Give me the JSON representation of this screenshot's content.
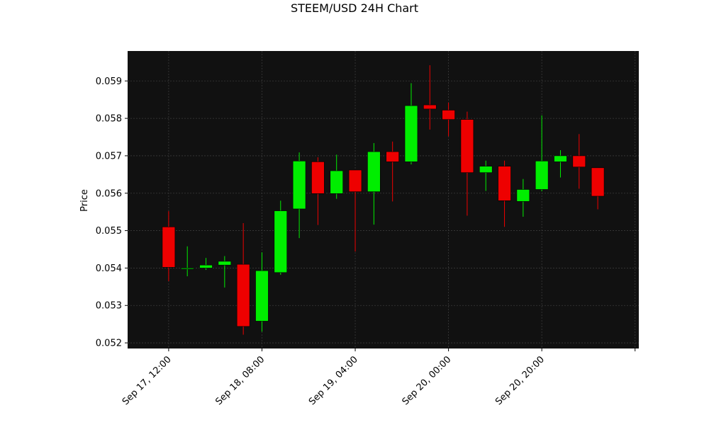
{
  "chart_data": {
    "type": "candlestick",
    "title": "STEEM/USD 24H Chart",
    "ylabel": "Price",
    "xlabel": "",
    "grid": true,
    "legend": "none",
    "colors": {
      "background": "#111111",
      "up": "#00ee00",
      "down": "#ee0000",
      "grid": "#3a3a3a"
    },
    "ylim": [
      0.05185,
      0.0598
    ],
    "yticks": [
      "0.052",
      "0.053",
      "0.054",
      "0.055",
      "0.056",
      "0.057",
      "0.058",
      "0.059"
    ],
    "xticks": [
      {
        "label": "Sep 17, 12:00",
        "index": 0
      },
      {
        "label": "Sep 18, 08:00",
        "index": 5
      },
      {
        "label": "Sep 19, 04:00",
        "index": 10
      },
      {
        "label": "Sep 20, 00:00",
        "index": 15
      },
      {
        "label": "Sep 20, 20:00",
        "index": 20
      },
      {
        "label": "",
        "index": 25
      }
    ],
    "xlim": [
      -2.2,
      25.2
    ],
    "candles": [
      {
        "open": 0.0551,
        "high": 0.05552,
        "low": 0.05365,
        "close": 0.05402
      },
      {
        "open": 0.05398,
        "high": 0.05458,
        "low": 0.05378,
        "close": 0.054
      },
      {
        "open": 0.054,
        "high": 0.05427,
        "low": 0.05395,
        "close": 0.05408
      },
      {
        "open": 0.05408,
        "high": 0.05432,
        "low": 0.05348,
        "close": 0.05418
      },
      {
        "open": 0.0541,
        "high": 0.0552,
        "low": 0.05222,
        "close": 0.05244
      },
      {
        "open": 0.05258,
        "high": 0.05442,
        "low": 0.0523,
        "close": 0.05393
      },
      {
        "open": 0.05388,
        "high": 0.0558,
        "low": 0.05382,
        "close": 0.05553
      },
      {
        "open": 0.05558,
        "high": 0.05709,
        "low": 0.0548,
        "close": 0.05686
      },
      {
        "open": 0.05684,
        "high": 0.05696,
        "low": 0.05515,
        "close": 0.05599
      },
      {
        "open": 0.05599,
        "high": 0.05703,
        "low": 0.05585,
        "close": 0.0566
      },
      {
        "open": 0.05662,
        "high": 0.05662,
        "low": 0.05444,
        "close": 0.05604
      },
      {
        "open": 0.05604,
        "high": 0.05734,
        "low": 0.05516,
        "close": 0.05711
      },
      {
        "open": 0.05711,
        "high": 0.05738,
        "low": 0.05578,
        "close": 0.05684
      },
      {
        "open": 0.05684,
        "high": 0.05894,
        "low": 0.05677,
        "close": 0.05834
      },
      {
        "open": 0.05836,
        "high": 0.05942,
        "low": 0.0577,
        "close": 0.05825
      },
      {
        "open": 0.05822,
        "high": 0.05842,
        "low": 0.05752,
        "close": 0.05797
      },
      {
        "open": 0.05797,
        "high": 0.05818,
        "low": 0.0554,
        "close": 0.05655
      },
      {
        "open": 0.05655,
        "high": 0.05687,
        "low": 0.05606,
        "close": 0.05672
      },
      {
        "open": 0.05672,
        "high": 0.05687,
        "low": 0.0551,
        "close": 0.0558
      },
      {
        "open": 0.05578,
        "high": 0.05638,
        "low": 0.05537,
        "close": 0.0561
      },
      {
        "open": 0.0561,
        "high": 0.05808,
        "low": 0.05605,
        "close": 0.05686
      },
      {
        "open": 0.05684,
        "high": 0.05715,
        "low": 0.05642,
        "close": 0.057
      },
      {
        "open": 0.057,
        "high": 0.05758,
        "low": 0.05612,
        "close": 0.0567
      },
      {
        "open": 0.05668,
        "high": 0.05668,
        "low": 0.05557,
        "close": 0.05592
      }
    ]
  }
}
